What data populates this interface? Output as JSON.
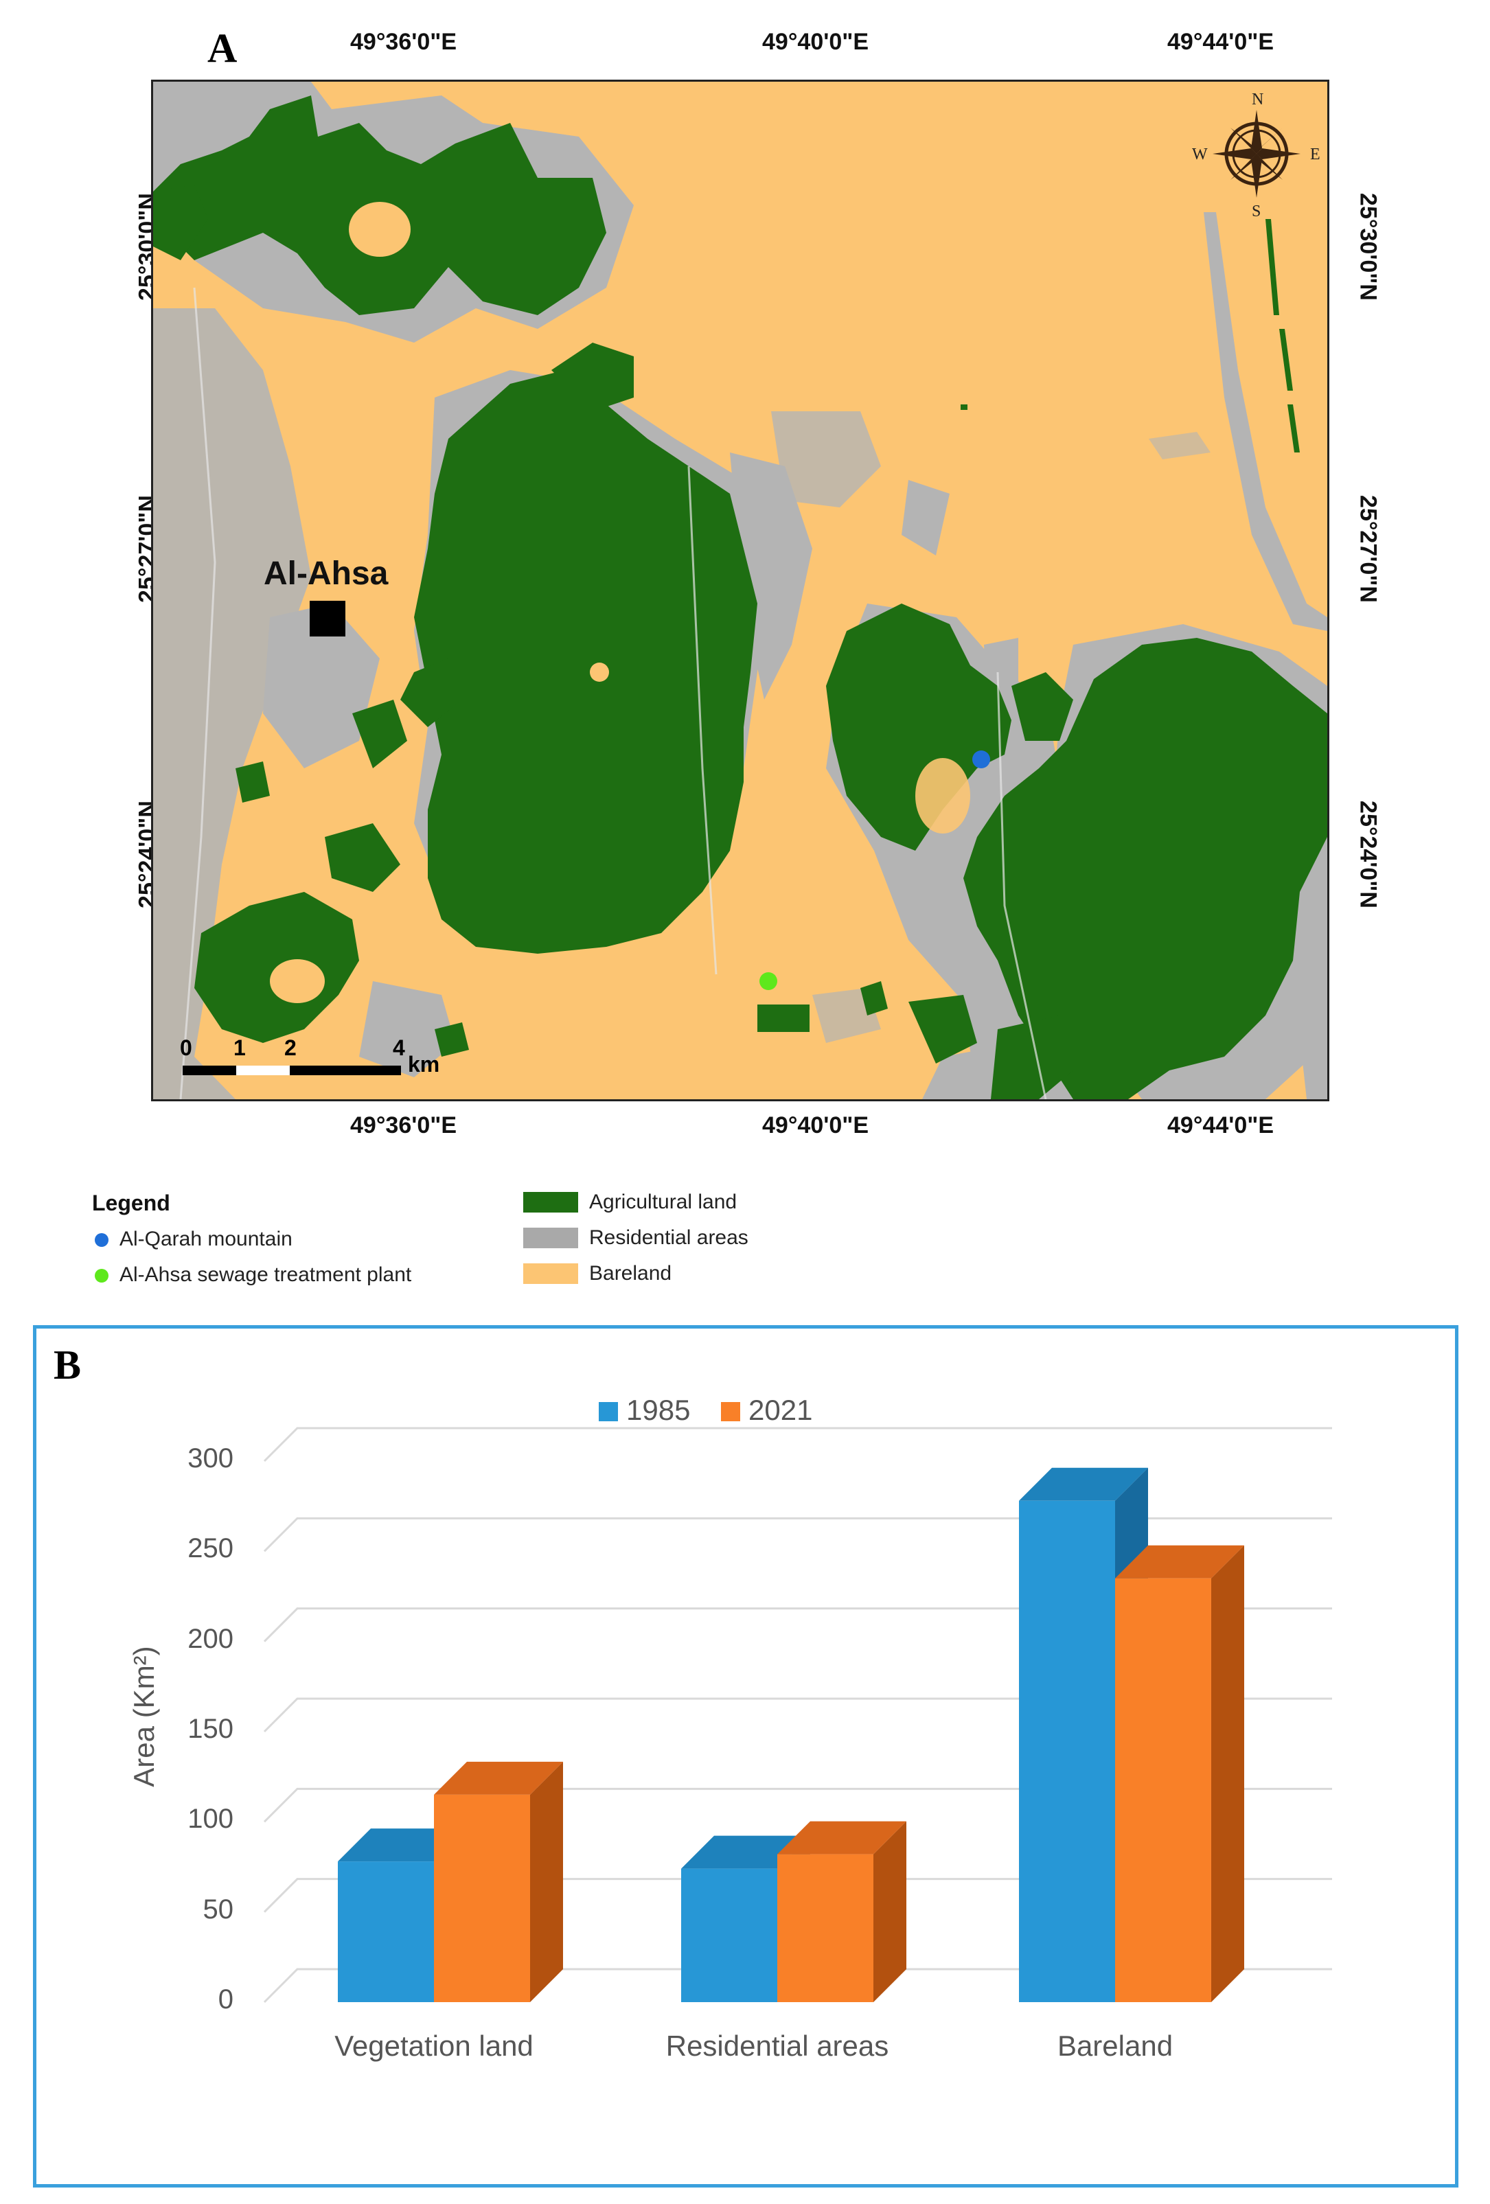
{
  "panelA": {
    "letter": "A",
    "top_lon_labels": [
      "49°36'0\"E",
      "49°40'0\"E",
      "49°44'0\"E"
    ],
    "bottom_lon_labels": [
      "49°36'0\"E",
      "49°40'0\"E",
      "49°44'0\"E"
    ],
    "left_lat_labels": [
      "25°30'0\"N",
      "25°27'0\"N",
      "25°24'0\"N"
    ],
    "right_lat_labels": [
      "25°30'0\"N",
      "25°27'0\"N",
      "25°24'0\"N"
    ],
    "city_label": "Al-Ahsa",
    "compass": {
      "n": "N",
      "s": "S",
      "e": "E",
      "w": "W"
    },
    "scale_bar": {
      "labels": [
        "0",
        "1",
        "2",
        "4"
      ],
      "unit": "km"
    },
    "colors": {
      "bareland": "#fcc573",
      "agricultural": "#1e6e12",
      "residential": "#b4b4b4",
      "mountain": "#1f6fd8",
      "sewage": "#5ee81c"
    }
  },
  "legend": {
    "title": "Legend",
    "points": [
      {
        "label": "Al-Qarah mountain",
        "color": "#1f6fd8"
      },
      {
        "label": "Al-Ahsa sewage treatment plant",
        "color": "#5ee81c"
      }
    ],
    "classes": [
      {
        "label": "Agricultural land",
        "color": "#1e6e12"
      },
      {
        "label": "Residential areas",
        "color": "#a9a9a9"
      },
      {
        "label": "Bareland",
        "color": "#fcc573"
      }
    ]
  },
  "panelB": {
    "letter": "B",
    "frame_color": "#3aa0dd"
  },
  "chart_data": {
    "type": "bar",
    "title": "",
    "categories": [
      "Vegetation land",
      "Residential areas",
      "Bareland"
    ],
    "series": [
      {
        "name": "1985",
        "values": [
          78,
          74,
          278
        ],
        "color": "#2797d6"
      },
      {
        "name": "2021",
        "values": [
          115,
          82,
          235
        ],
        "color": "#f98028"
      }
    ],
    "ylabel": "Area (Km²)",
    "xlabel": "",
    "ylim": [
      0,
      300
    ],
    "yticks": [
      "0",
      "50",
      "100",
      "150",
      "200",
      "250",
      "300"
    ],
    "legend_position": "top-center",
    "grid": true
  }
}
